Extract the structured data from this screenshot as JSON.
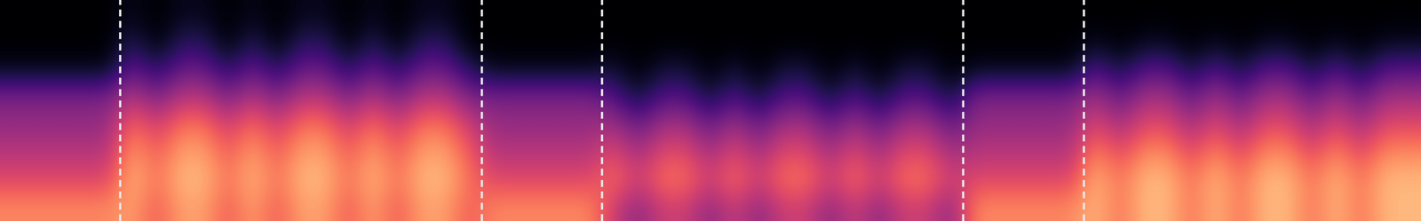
{
  "chart_data": {
    "type": "heatmap",
    "xlim": [
      0,
      11.8
    ],
    "boundaries": [
      1,
      4,
      5,
      8,
      9
    ],
    "tick_labels": false,
    "color_range": [
      0,
      1
    ],
    "cells": [
      [
        0.75,
        0.75,
        0.75,
        0.75,
        0.75,
        0.8,
        0.65,
        0.8,
        0.8,
        0.65,
        0.8,
        0.65,
        0.8,
        0.8,
        0.65,
        0.8,
        0.65,
        0.8,
        0.8,
        0.65,
        0.75,
        0.75,
        0.75,
        0.75,
        0.75,
        0.55,
        0.4,
        0.55,
        0.55,
        0.4,
        0.55,
        0.4,
        0.55,
        0.55,
        0.4,
        0.55,
        0.4,
        0.55,
        0.55,
        0.4,
        0.75,
        0.75,
        0.75,
        0.75,
        0.75,
        0.85,
        0.7,
        0.85,
        0.85,
        0.7,
        0.85,
        0.7,
        0.85,
        0.85,
        0.7,
        0.85,
        0.7,
        0.85,
        0.85
      ],
      [
        0.6,
        0.6,
        0.6,
        0.6,
        0.6,
        0.85,
        0.7,
        0.85,
        0.85,
        0.7,
        0.85,
        0.7,
        0.85,
        0.85,
        0.7,
        0.85,
        0.7,
        0.85,
        0.85,
        0.7,
        0.6,
        0.6,
        0.6,
        0.6,
        0.6,
        0.7,
        0.55,
        0.7,
        0.7,
        0.55,
        0.7,
        0.55,
        0.7,
        0.7,
        0.55,
        0.7,
        0.55,
        0.7,
        0.7,
        0.55,
        0.6,
        0.6,
        0.6,
        0.6,
        0.6,
        0.85,
        0.7,
        0.85,
        0.85,
        0.7,
        0.85,
        0.7,
        0.85,
        0.85,
        0.7,
        0.85,
        0.7,
        0.85,
        0.85
      ],
      [
        0.5,
        0.5,
        0.5,
        0.5,
        0.5,
        0.8,
        0.65,
        0.8,
        0.8,
        0.65,
        0.8,
        0.65,
        0.8,
        0.8,
        0.65,
        0.8,
        0.65,
        0.8,
        0.8,
        0.65,
        0.5,
        0.5,
        0.5,
        0.5,
        0.5,
        0.6,
        0.45,
        0.6,
        0.6,
        0.45,
        0.6,
        0.45,
        0.6,
        0.6,
        0.45,
        0.6,
        0.45,
        0.6,
        0.6,
        0.45,
        0.5,
        0.5,
        0.5,
        0.5,
        0.5,
        0.75,
        0.6,
        0.75,
        0.75,
        0.6,
        0.75,
        0.6,
        0.75,
        0.75,
        0.6,
        0.75,
        0.6,
        0.75,
        0.75
      ],
      [
        0.42,
        0.42,
        0.42,
        0.42,
        0.42,
        0.7,
        0.55,
        0.7,
        0.7,
        0.55,
        0.7,
        0.55,
        0.7,
        0.7,
        0.55,
        0.7,
        0.55,
        0.7,
        0.7,
        0.55,
        0.42,
        0.42,
        0.42,
        0.42,
        0.42,
        0.45,
        0.3,
        0.45,
        0.45,
        0.3,
        0.45,
        0.3,
        0.45,
        0.45,
        0.3,
        0.45,
        0.3,
        0.45,
        0.45,
        0.3,
        0.42,
        0.42,
        0.42,
        0.42,
        0.42,
        0.6,
        0.45,
        0.6,
        0.6,
        0.45,
        0.6,
        0.45,
        0.6,
        0.6,
        0.45,
        0.6,
        0.45,
        0.6,
        0.6
      ],
      [
        0.35,
        0.35,
        0.35,
        0.35,
        0.35,
        0.5,
        0.35,
        0.5,
        0.5,
        0.35,
        0.5,
        0.35,
        0.5,
        0.5,
        0.35,
        0.5,
        0.35,
        0.5,
        0.5,
        0.35,
        0.35,
        0.35,
        0.35,
        0.35,
        0.35,
        0.25,
        0.1,
        0.25,
        0.25,
        0.1,
        0.25,
        0.1,
        0.25,
        0.25,
        0.1,
        0.25,
        0.1,
        0.25,
        0.25,
        0.1,
        0.35,
        0.35,
        0.35,
        0.35,
        0.35,
        0.45,
        0.3,
        0.45,
        0.45,
        0.3,
        0.45,
        0.3,
        0.45,
        0.45,
        0.3,
        0.45,
        0.3,
        0.45,
        0.45
      ],
      [
        0.05,
        0.05,
        0.05,
        0.05,
        0.05,
        0.3,
        0.15,
        0.3,
        0.3,
        0.15,
        0.3,
        0.15,
        0.3,
        0.3,
        0.15,
        0.3,
        0.15,
        0.3,
        0.3,
        0.15,
        0.05,
        0.05,
        0.05,
        0.05,
        0.05,
        0.1,
        0.0,
        0.1,
        0.1,
        0.0,
        0.1,
        0.0,
        0.1,
        0.1,
        0.0,
        0.1,
        0.0,
        0.1,
        0.1,
        0.0,
        0.05,
        0.05,
        0.05,
        0.05,
        0.05,
        0.25,
        0.1,
        0.25,
        0.25,
        0.1,
        0.25,
        0.1,
        0.25,
        0.25,
        0.1,
        0.25,
        0.1,
        0.25,
        0.25
      ],
      [
        0.0,
        0.0,
        0.0,
        0.0,
        0.0,
        0.15,
        0.0,
        0.15,
        0.15,
        0.0,
        0.15,
        0.0,
        0.15,
        0.15,
        0.0,
        0.15,
        0.0,
        0.15,
        0.15,
        0.0,
        0.0,
        0.0,
        0.0,
        0.0,
        0.0,
        0.0,
        0.0,
        0.0,
        0.0,
        0.0,
        0.0,
        0.0,
        0.0,
        0.0,
        0.0,
        0.0,
        0.0,
        0.0,
        0.0,
        0.0,
        0.0,
        0.0,
        0.0,
        0.0,
        0.0,
        0.05,
        0.0,
        0.05,
        0.05,
        0.0,
        0.05,
        0.0,
        0.05,
        0.05,
        0.0,
        0.05,
        0.0,
        0.05,
        0.05
      ],
      [
        0.0,
        0.0,
        0.0,
        0.0,
        0.0,
        0.05,
        0.0,
        0.05,
        0.05,
        0.0,
        0.05,
        0.0,
        0.05,
        0.05,
        0.0,
        0.05,
        0.0,
        0.05,
        0.05,
        0.0,
        0.0,
        0.0,
        0.0,
        0.0,
        0.0,
        0.0,
        0.0,
        0.0,
        0.0,
        0.0,
        0.0,
        0.0,
        0.0,
        0.0,
        0.0,
        0.0,
        0.0,
        0.0,
        0.0,
        0.0,
        0.0,
        0.0,
        0.0,
        0.0,
        0.0,
        0.0,
        0.0,
        0.0,
        0.0,
        0.0,
        0.0,
        0.0,
        0.0,
        0.0,
        0.0,
        0.0,
        0.0,
        0.0,
        0.0
      ]
    ]
  }
}
